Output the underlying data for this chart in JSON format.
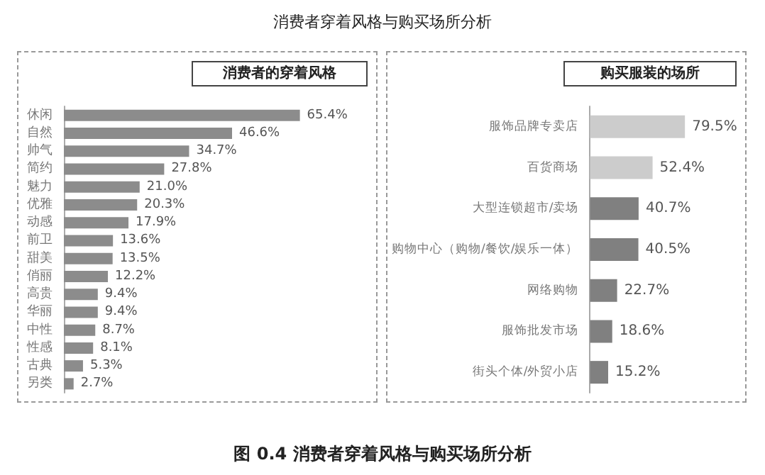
{
  "chart_data": [
    {
      "type": "bar",
      "orientation": "horizontal",
      "title": "消费者的穿着风格",
      "annotations": [
        "消费者穿着风格与购买场所分析",
        "图 0.4 消费者穿着风格与购买场所分析"
      ],
      "tick_labels": "y",
      "categories": [
        "休闲",
        "自然",
        "帅气",
        "简约",
        "魅力",
        "优雅",
        "动感",
        "前卫",
        "甜美",
        "俏丽",
        "高贵",
        "华丽",
        "中性",
        "性感",
        "古典",
        "另类"
      ],
      "values": [
        65.4,
        46.6,
        34.7,
        27.8,
        21.0,
        20.3,
        17.9,
        13.6,
        13.5,
        12.2,
        9.4,
        9.4,
        8.7,
        8.1,
        5.3,
        2.7
      ],
      "value_labels": [
        "65.4%",
        "46.6%",
        "34.7%",
        "27.8%",
        "21.0%",
        "20.3%",
        "17.9%",
        "13.6%",
        "13.5%",
        "12.2%",
        "9.4%",
        "9.4%",
        "8.7%",
        "8.1%",
        "5.3%",
        "2.7%"
      ],
      "color": "#8c8c8c"
    },
    {
      "type": "bar",
      "orientation": "horizontal",
      "title": "购买服装的场所",
      "tick_labels": "y",
      "categories": [
        "服饰品牌专卖店",
        "百货商场",
        "大型连锁超市/卖场",
        "购物中心（购物/餐饮/娱乐一体）",
        "网络购物",
        "服饰批发市场",
        "街头个体/外贸小店"
      ],
      "values": [
        79.5,
        52.4,
        40.7,
        40.5,
        22.7,
        18.6,
        15.2
      ],
      "value_labels": [
        "79.5%",
        "52.4%",
        "40.7%",
        "40.5%",
        "22.7%",
        "18.6%",
        "15.2%"
      ],
      "colors": [
        "#cccccc",
        "#cccccc",
        "#808080",
        "#808080",
        "#808080",
        "#808080",
        "#808080"
      ]
    }
  ]
}
